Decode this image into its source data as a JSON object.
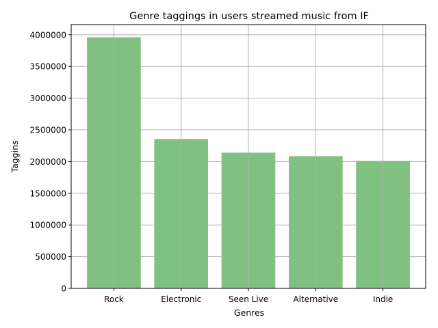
{
  "chart_data": {
    "type": "bar",
    "title": "Genre taggings in users streamed music from IF",
    "xlabel": "Genres",
    "ylabel": "Taggins",
    "categories": [
      "Rock",
      "Electronic",
      "Seen Live",
      "Alternative",
      "Indie"
    ],
    "values": [
      3960000,
      2355000,
      2140000,
      2085000,
      2010000
    ],
    "ylim": [
      0,
      4160000
    ],
    "yticks": [
      0,
      500000,
      1000000,
      1500000,
      2000000,
      2500000,
      3000000,
      3500000,
      4000000
    ],
    "ytick_labels": [
      "0",
      "500000",
      "1000000",
      "1500000",
      "2000000",
      "2500000",
      "3000000",
      "3500000",
      "4000000"
    ],
    "grid": true,
    "bar_color": "#80c080"
  }
}
